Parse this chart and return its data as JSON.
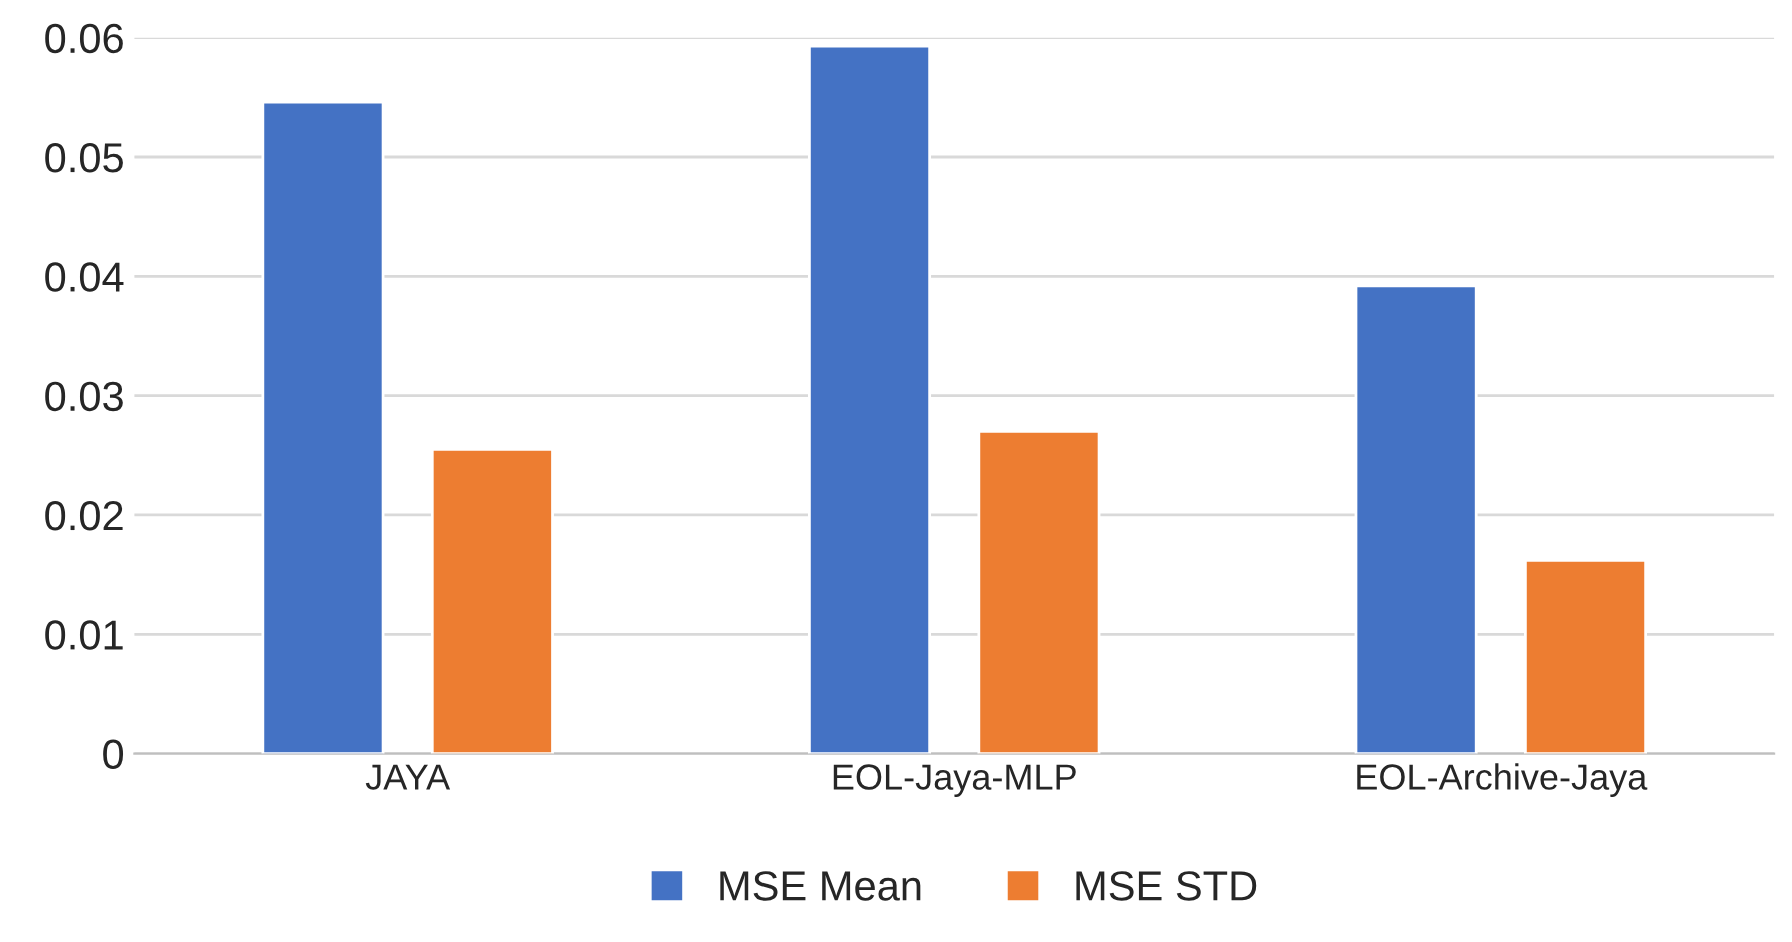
{
  "chart_data": {
    "type": "bar",
    "categories": [
      "JAYA",
      "EOL-Jaya-MLP",
      "EOL-Archive-Jaya"
    ],
    "series": [
      {
        "name": "MSE Mean",
        "color": "#4472c4",
        "values": [
          0.0546,
          0.0593,
          0.0392
        ]
      },
      {
        "name": "MSE STD",
        "color": "#ed7d31",
        "values": [
          0.0255,
          0.027,
          0.0162
        ]
      }
    ],
    "ylim": [
      0,
      0.06
    ],
    "yticks": [
      {
        "value": 0,
        "label": "0"
      },
      0.01,
      0.02,
      0.03,
      0.04,
      0.05,
      0.06
    ],
    "grid": "y",
    "legend": "bottom"
  }
}
